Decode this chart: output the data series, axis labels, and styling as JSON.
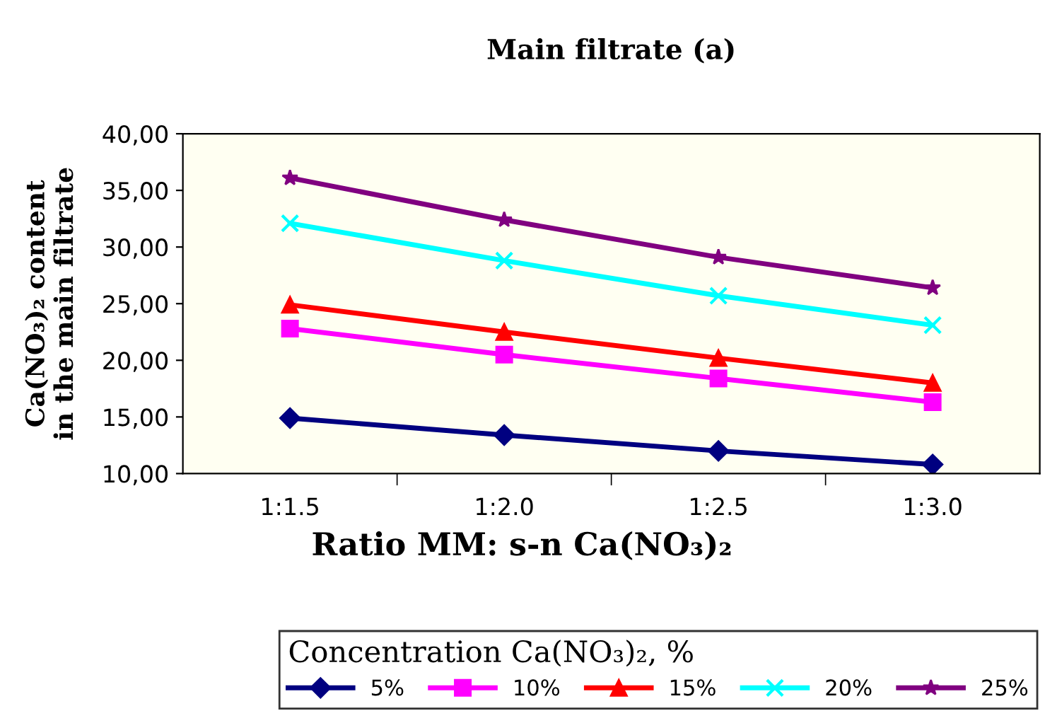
{
  "chart_data": {
    "type": "line",
    "title": "Main filtrate (a)",
    "xlabel": "Ratio MM: s-n Ca(NO₃)₂",
    "ylabel": "Ca(NO₃)₂ content\nin the main filtrate",
    "legend_title": "Concentration Ca(NO₃)₂, %",
    "categories": [
      "1:1.5",
      "1:2.0",
      "1:2.5",
      "1:3.0"
    ],
    "series": [
      {
        "name": "5%",
        "color": "#000080",
        "marker": "diamond",
        "values": [
          14.9,
          13.4,
          12.0,
          10.8
        ]
      },
      {
        "name": "10%",
        "color": "#ff00ff",
        "marker": "square",
        "values": [
          22.8,
          20.5,
          18.4,
          16.3
        ]
      },
      {
        "name": "15%",
        "color": "#ff0000",
        "marker": "triangle",
        "values": [
          24.9,
          22.5,
          20.2,
          18.0
        ]
      },
      {
        "name": "20%",
        "color": "#00ffff",
        "marker": "cross",
        "values": [
          32.1,
          28.8,
          25.7,
          23.1
        ]
      },
      {
        "name": "25%",
        "color": "#800080",
        "marker": "star",
        "values": [
          36.1,
          32.4,
          29.1,
          26.4
        ]
      }
    ],
    "ylim": [
      10,
      40
    ],
    "yticks": [
      {
        "value": 10,
        "label": "10,00"
      },
      {
        "value": 15,
        "label": "15,00"
      },
      {
        "value": 20,
        "label": "20,00"
      },
      {
        "value": 25,
        "label": "25,00"
      },
      {
        "value": 30,
        "label": "30,00"
      },
      {
        "value": 35,
        "label": "35,00"
      },
      {
        "value": 40,
        "label": "40,00"
      }
    ],
    "grid": false,
    "legend": "bottom",
    "line_style": "solid"
  }
}
